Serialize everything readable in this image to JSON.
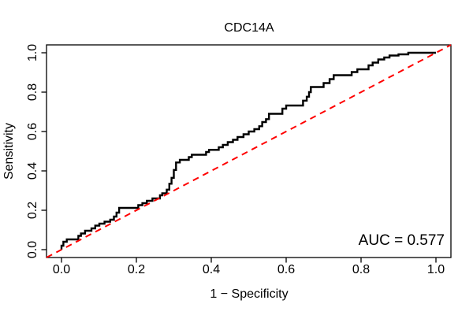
{
  "figure": {
    "title": "CDC14A",
    "auc_text": "AUC = 0.577"
  },
  "chart_data": {
    "type": "line",
    "subtype": "roc-curve",
    "title": "CDC14A",
    "xlabel": "1 − Specificity",
    "ylabel": "Sensitivity",
    "xlim": [
      -0.04,
      1.04
    ],
    "ylim": [
      -0.04,
      1.04
    ],
    "grid": false,
    "xticks": {
      "values": [
        0,
        0.2,
        0.4,
        0.6,
        0.8,
        1.0
      ],
      "labels": [
        "0.0",
        "0.2",
        "0.4",
        "0.6",
        "0.8",
        "1.0"
      ]
    },
    "yticks": {
      "values": [
        0,
        0.2,
        0.4,
        0.6,
        0.8,
        1.0
      ],
      "labels": [
        "0.0",
        "0.2",
        "0.4",
        "0.6",
        "0.8",
        "1.0"
      ]
    },
    "annotation": {
      "text": "AUC = 0.577",
      "position": "bottom-right"
    },
    "auc": 0.577,
    "colors": {
      "roc": "#000000",
      "diagonal": "#ff0000",
      "frame": "#000000"
    },
    "series": [
      {
        "name": "ROC curve",
        "color": "#000000",
        "width": 2.4,
        "dash": "",
        "points": [
          [
            0,
            0
          ],
          [
            0,
            0.02
          ],
          [
            0.005,
            0.02
          ],
          [
            0.005,
            0.04
          ],
          [
            0.014,
            0.04
          ],
          [
            0.014,
            0.052
          ],
          [
            0.024,
            0.052
          ],
          [
            0.045,
            0.052
          ],
          [
            0.045,
            0.07
          ],
          [
            0.052,
            0.07
          ],
          [
            0.052,
            0.082
          ],
          [
            0.063,
            0.082
          ],
          [
            0.063,
            0.096
          ],
          [
            0.08,
            0.096
          ],
          [
            0.08,
            0.108
          ],
          [
            0.09,
            0.108
          ],
          [
            0.09,
            0.122
          ],
          [
            0.101,
            0.122
          ],
          [
            0.101,
            0.132
          ],
          [
            0.115,
            0.132
          ],
          [
            0.115,
            0.142
          ],
          [
            0.13,
            0.142
          ],
          [
            0.13,
            0.152
          ],
          [
            0.14,
            0.152
          ],
          [
            0.14,
            0.168
          ],
          [
            0.147,
            0.168
          ],
          [
            0.147,
            0.188
          ],
          [
            0.154,
            0.188
          ],
          [
            0.154,
            0.212
          ],
          [
            0.16,
            0.212
          ],
          [
            0.205,
            0.212
          ],
          [
            0.205,
            0.226
          ],
          [
            0.216,
            0.226
          ],
          [
            0.216,
            0.236
          ],
          [
            0.228,
            0.236
          ],
          [
            0.228,
            0.248
          ],
          [
            0.243,
            0.248
          ],
          [
            0.243,
            0.26
          ],
          [
            0.263,
            0.26
          ],
          [
            0.263,
            0.276
          ],
          [
            0.269,
            0.276
          ],
          [
            0.269,
            0.286
          ],
          [
            0.281,
            0.286
          ],
          [
            0.281,
            0.305
          ],
          [
            0.288,
            0.305
          ],
          [
            0.288,
            0.335
          ],
          [
            0.294,
            0.335
          ],
          [
            0.294,
            0.365
          ],
          [
            0.3,
            0.365
          ],
          [
            0.3,
            0.405
          ],
          [
            0.306,
            0.405
          ],
          [
            0.306,
            0.443
          ],
          [
            0.316,
            0.443
          ],
          [
            0.316,
            0.456
          ],
          [
            0.34,
            0.456
          ],
          [
            0.34,
            0.47
          ],
          [
            0.348,
            0.47
          ],
          [
            0.348,
            0.482
          ],
          [
            0.386,
            0.482
          ],
          [
            0.386,
            0.496
          ],
          [
            0.394,
            0.496
          ],
          [
            0.394,
            0.507
          ],
          [
            0.42,
            0.507
          ],
          [
            0.42,
            0.52
          ],
          [
            0.431,
            0.52
          ],
          [
            0.431,
            0.532
          ],
          [
            0.444,
            0.532
          ],
          [
            0.444,
            0.546
          ],
          [
            0.458,
            0.546
          ],
          [
            0.458,
            0.558
          ],
          [
            0.47,
            0.558
          ],
          [
            0.47,
            0.572
          ],
          [
            0.486,
            0.572
          ],
          [
            0.486,
            0.586
          ],
          [
            0.5,
            0.586
          ],
          [
            0.5,
            0.6
          ],
          [
            0.515,
            0.6
          ],
          [
            0.515,
            0.612
          ],
          [
            0.528,
            0.612
          ],
          [
            0.528,
            0.627
          ],
          [
            0.536,
            0.627
          ],
          [
            0.536,
            0.648
          ],
          [
            0.546,
            0.648
          ],
          [
            0.546,
            0.663
          ],
          [
            0.554,
            0.663
          ],
          [
            0.554,
            0.69
          ],
          [
            0.59,
            0.69
          ],
          [
            0.59,
            0.716
          ],
          [
            0.6,
            0.716
          ],
          [
            0.6,
            0.732
          ],
          [
            0.645,
            0.732
          ],
          [
            0.645,
            0.757
          ],
          [
            0.655,
            0.757
          ],
          [
            0.655,
            0.777
          ],
          [
            0.661,
            0.777
          ],
          [
            0.661,
            0.8
          ],
          [
            0.666,
            0.8
          ],
          [
            0.666,
            0.826
          ],
          [
            0.7,
            0.826
          ],
          [
            0.7,
            0.846
          ],
          [
            0.716,
            0.846
          ],
          [
            0.716,
            0.866
          ],
          [
            0.727,
            0.866
          ],
          [
            0.727,
            0.886
          ],
          [
            0.775,
            0.886
          ],
          [
            0.775,
            0.902
          ],
          [
            0.79,
            0.902
          ],
          [
            0.79,
            0.916
          ],
          [
            0.82,
            0.916
          ],
          [
            0.82,
            0.936
          ],
          [
            0.831,
            0.936
          ],
          [
            0.831,
            0.95
          ],
          [
            0.846,
            0.95
          ],
          [
            0.846,
            0.966
          ],
          [
            0.862,
            0.966
          ],
          [
            0.862,
            0.976
          ],
          [
            0.876,
            0.976
          ],
          [
            0.876,
            0.986
          ],
          [
            0.9,
            0.986
          ],
          [
            0.9,
            0.992
          ],
          [
            0.926,
            0.992
          ],
          [
            0.926,
            1
          ],
          [
            1,
            1
          ]
        ]
      },
      {
        "name": "chance diagonal",
        "color": "#ff0000",
        "width": 2,
        "dash": "8 6",
        "points": [
          [
            -0.04,
            -0.04
          ],
          [
            1.04,
            1.04
          ]
        ]
      }
    ]
  }
}
